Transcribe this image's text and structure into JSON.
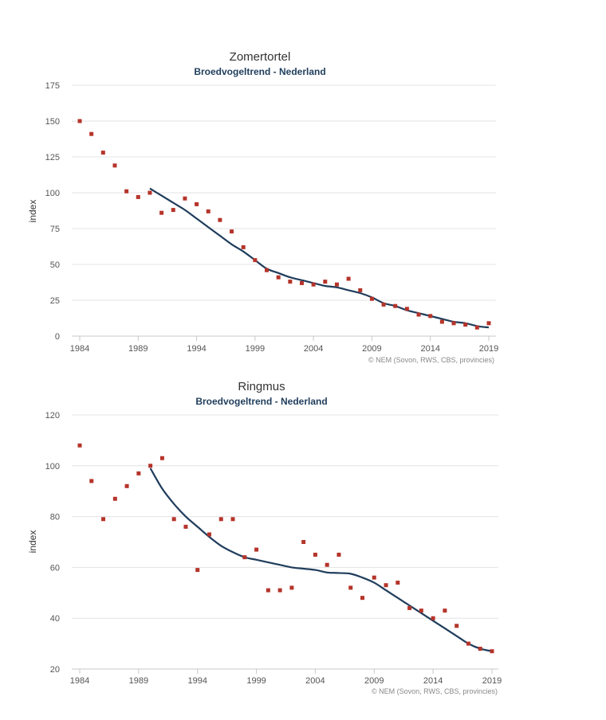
{
  "page": {
    "background": "#ffffff"
  },
  "chart_data": [
    {
      "type": "scatter",
      "title": "Zomertortel",
      "subtitle": "Broedvogeltrend - Nederland",
      "ylabel": "index",
      "xlabel": "",
      "credit": "© NEM (Sovon, RWS, CBS, provincies)",
      "xlim": [
        1984,
        2019
      ],
      "ylim": [
        0,
        175
      ],
      "xticks": [
        1984,
        1989,
        1994,
        1999,
        2004,
        2009,
        2014,
        2019
      ],
      "yticks": [
        0,
        25,
        50,
        75,
        100,
        125,
        150,
        175
      ],
      "grid": true,
      "colors": {
        "points": "#b5342a",
        "trend": "#1f3d5c"
      },
      "series": [
        {
          "type": "scatter",
          "x": [
            1984,
            1985,
            1986,
            1987,
            1988,
            1989,
            1990,
            1991,
            1992,
            1993,
            1994,
            1995,
            1996,
            1997,
            1998,
            1999,
            2000,
            2001,
            2002,
            2003,
            2004,
            2005,
            2006,
            2007,
            2008,
            2009,
            2010,
            2011,
            2012,
            2013,
            2014,
            2015,
            2016,
            2017,
            2018,
            2019
          ],
          "y": [
            150,
            141,
            128,
            119,
            101,
            97,
            100,
            86,
            88,
            96,
            92,
            87,
            81,
            73,
            62,
            53,
            46,
            41,
            38,
            37,
            36,
            38,
            36,
            40,
            32,
            26,
            22,
            21,
            19,
            15,
            14,
            10,
            9,
            8,
            6,
            9
          ]
        },
        {
          "type": "line",
          "x": [
            1990,
            1991,
            1992,
            1993,
            1994,
            1995,
            1996,
            1997,
            1998,
            1999,
            2000,
            2001,
            2002,
            2003,
            2004,
            2005,
            2006,
            2007,
            2008,
            2009,
            2010,
            2011,
            2012,
            2013,
            2014,
            2015,
            2016,
            2017,
            2018,
            2019
          ],
          "y": [
            103,
            98,
            93,
            88,
            82,
            76,
            70,
            64,
            59,
            53,
            47,
            44,
            41,
            39,
            37,
            35,
            34,
            32,
            30,
            27,
            23,
            21,
            18,
            16,
            14,
            12,
            10,
            9,
            7,
            6
          ]
        }
      ]
    },
    {
      "type": "scatter",
      "title": "Ringmus",
      "subtitle": "Broedvogeltrend - Nederland",
      "ylabel": "index",
      "xlabel": "",
      "credit": "© NEM (Sovon, RWS, CBS, provincies)",
      "xlim": [
        1984,
        2019
      ],
      "ylim": [
        20,
        120
      ],
      "xticks": [
        1984,
        1989,
        1994,
        1999,
        2004,
        2009,
        2014,
        2019
      ],
      "yticks": [
        20,
        40,
        60,
        80,
        100,
        120
      ],
      "grid": true,
      "colors": {
        "points": "#b5342a",
        "trend": "#1f3d5c"
      },
      "series": [
        {
          "type": "scatter",
          "x": [
            1984,
            1985,
            1986,
            1987,
            1988,
            1989,
            1990,
            1991,
            1992,
            1993,
            1994,
            1995,
            1996,
            1997,
            1998,
            1999,
            2000,
            2001,
            2002,
            2003,
            2004,
            2005,
            2006,
            2007,
            2008,
            2009,
            2010,
            2011,
            2012,
            2013,
            2014,
            2015,
            2016,
            2017,
            2018,
            2019
          ],
          "y": [
            108,
            94,
            79,
            87,
            92,
            97,
            100,
            103,
            79,
            76,
            59,
            73,
            79,
            79,
            64,
            67,
            51,
            51,
            52,
            70,
            65,
            61,
            65,
            52,
            48,
            56,
            53,
            54,
            44,
            43,
            40,
            43,
            37,
            30,
            28,
            27
          ]
        },
        {
          "type": "line",
          "x": [
            1990,
            1991,
            1992,
            1993,
            1994,
            1995,
            1996,
            1997,
            1998,
            1999,
            2000,
            2001,
            2002,
            2003,
            2004,
            2005,
            2006,
            2007,
            2008,
            2009,
            2010,
            2011,
            2012,
            2013,
            2014,
            2015,
            2016,
            2017,
            2018,
            2019
          ],
          "y": [
            99,
            91,
            85,
            80,
            76,
            72,
            68.5,
            66,
            64,
            63,
            62,
            61,
            60,
            59.5,
            59,
            58,
            57.8,
            57.5,
            56,
            54,
            51,
            48,
            45,
            42,
            39,
            36,
            33,
            30,
            28,
            27
          ]
        }
      ]
    }
  ]
}
